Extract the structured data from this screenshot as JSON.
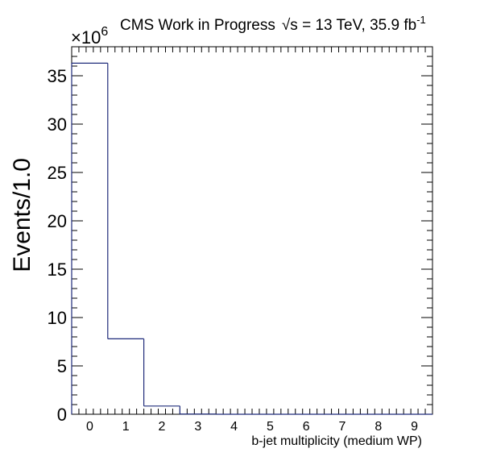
{
  "header": {
    "experiment": "CMS Work in Progress",
    "sqrt_symbol": "√",
    "energy_suffix": "s = 13 TeV, 35.9 fb",
    "lumi_exponent": "-1",
    "scale_base": "×10",
    "scale_exponent": "6"
  },
  "colors": {
    "histogram_line": "#1f2b7a",
    "axis": "#000000"
  },
  "chart_data": {
    "type": "bar",
    "style": "step-histogram",
    "xlabel": "b-jet multiplicity (medium WP)",
    "ylabel": "Events/1.0",
    "categories": [
      "0",
      "1",
      "2",
      "3",
      "4",
      "5",
      "6",
      "7",
      "8",
      "9"
    ],
    "values": [
      36.3,
      7.8,
      0.85,
      0.02,
      0,
      0,
      0,
      0,
      0,
      0
    ],
    "value_unit_multiplier": 1000000,
    "xlim": [
      -0.5,
      9.5
    ],
    "ylim": [
      0,
      38
    ],
    "xticks": [
      "0",
      "1",
      "2",
      "3",
      "4",
      "5",
      "6",
      "7",
      "8",
      "9"
    ],
    "yticks": [
      "0",
      "5",
      "10",
      "15",
      "20",
      "25",
      "30",
      "35"
    ],
    "grid": false,
    "legend": "none"
  }
}
